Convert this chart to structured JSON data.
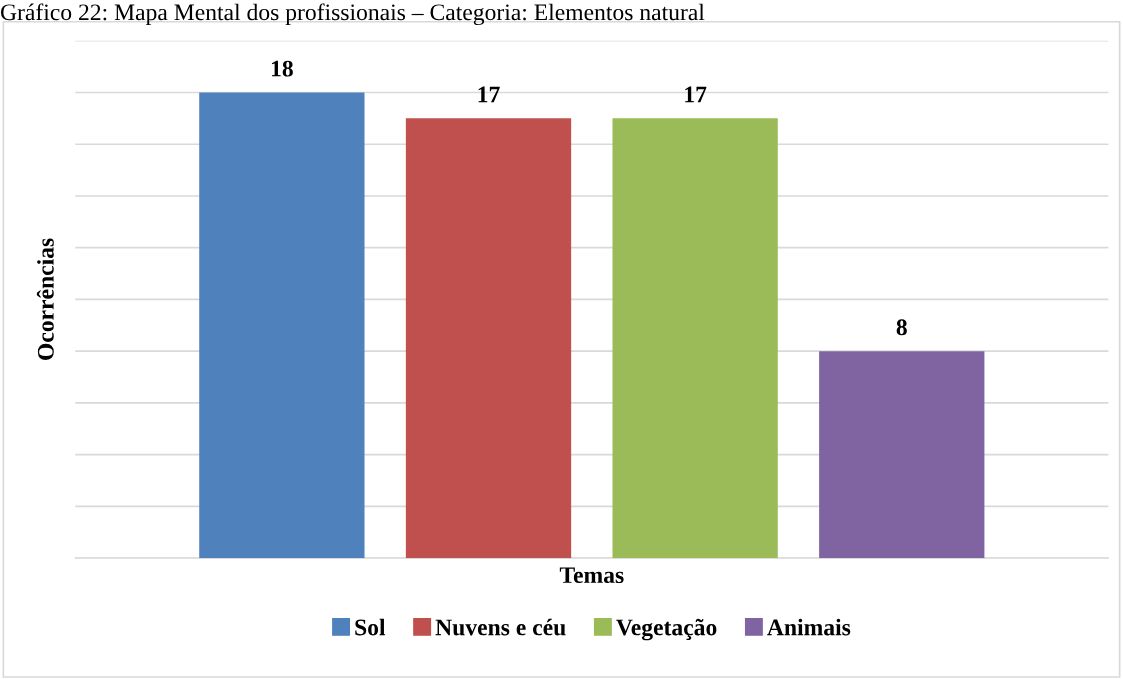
{
  "chart_data": {
    "type": "bar",
    "title": "Gráfico 22: Mapa Mental dos profissionais – Categoria: Elementos natural",
    "xlabel": "Temas",
    "ylabel": "Ocorrências",
    "categories": [
      null
    ],
    "series": [
      {
        "name": "Sol",
        "color": "#4f81bd",
        "values": [
          18
        ]
      },
      {
        "name": "Nuvens e céu",
        "color": "#c0504d",
        "values": [
          17
        ]
      },
      {
        "name": "Vegetação",
        "color": "#9bbb59",
        "values": [
          17
        ]
      },
      {
        "name": "Animais",
        "color": "#8064a2",
        "values": [
          8
        ]
      }
    ],
    "ylim": [
      0,
      20
    ],
    "yticks": [
      {
        "value": 0,
        "label": null
      },
      {
        "value": 2,
        "label": null
      },
      {
        "value": 4,
        "label": null
      },
      {
        "value": 6,
        "label": null
      },
      {
        "value": 8,
        "label": null
      },
      {
        "value": 10,
        "label": null
      },
      {
        "value": 12,
        "label": null
      },
      {
        "value": 14,
        "label": null
      },
      {
        "value": 16,
        "label": null
      },
      {
        "value": 18,
        "label": null
      },
      {
        "value": 20,
        "label": null
      }
    ],
    "tick_labels": false,
    "grid": "y",
    "legend": "bottom",
    "data_labels": true
  }
}
